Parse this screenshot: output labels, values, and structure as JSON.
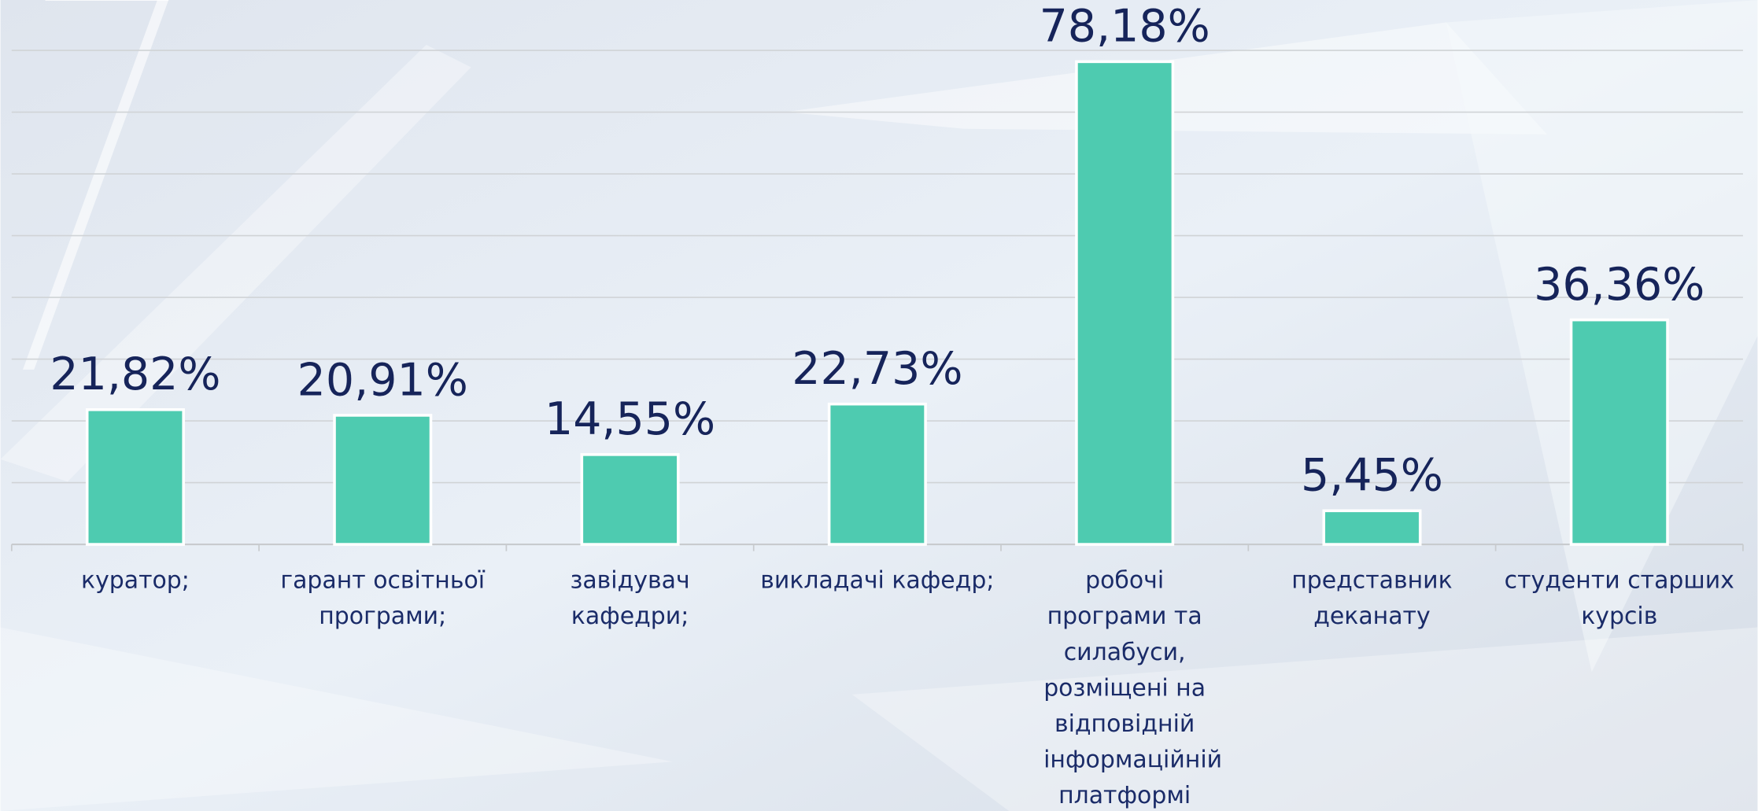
{
  "chart_data": {
    "type": "bar",
    "categories": [
      "куратор;",
      "гарант освітньої програми;",
      "завідувач кафедри;",
      "викладачі кафедр;",
      "робочі програми та силабуси, розміщені на відповідній інформаційній платформі Університету",
      "представник деканату",
      "студенти старших курсів"
    ],
    "values": [
      21.82,
      20.91,
      14.55,
      22.73,
      78.18,
      5.45,
      36.36
    ],
    "value_labels": [
      "21,82%",
      "20,91%",
      "14,55%",
      "22,73%",
      "78,18%",
      "5,45%",
      "36,36%"
    ],
    "color": "#4ecbb0",
    "ylim": [
      0,
      80
    ],
    "yticks": [
      0,
      10,
      20,
      30,
      40,
      50,
      60,
      70,
      80
    ],
    "grid": true
  }
}
